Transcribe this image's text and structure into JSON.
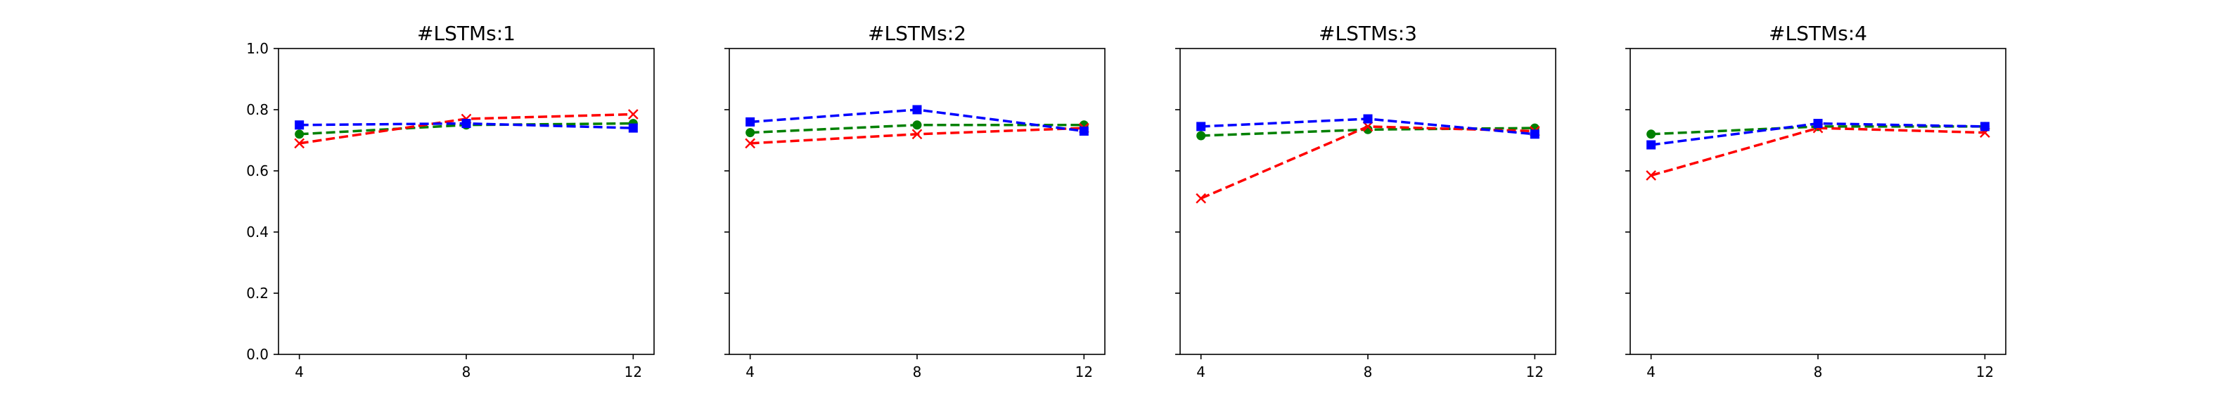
{
  "chart_data": [
    {
      "type": "line",
      "title": "#LSTMs:1",
      "xlabel": "",
      "ylabel": "",
      "x": [
        4,
        8,
        12
      ],
      "xticks": [
        "4",
        "8",
        "12"
      ],
      "ylim": [
        0.0,
        1.0
      ],
      "yticks": [
        "0.0",
        "0.2",
        "0.4",
        "0.6",
        "0.8",
        "1.0"
      ],
      "show_yticklabels": true,
      "grid": false,
      "series": [
        {
          "values": [
            0.72,
            0.75,
            0.755
          ],
          "color": "#008000",
          "marker": "circle",
          "linestyle": "dashed"
        },
        {
          "values": [
            0.69,
            0.77,
            0.785
          ],
          "color": "#ff0000",
          "marker": "x",
          "linestyle": "dashed"
        },
        {
          "values": [
            0.75,
            0.755,
            0.74
          ],
          "color": "#0000ff",
          "marker": "square",
          "linestyle": "dashed"
        }
      ]
    },
    {
      "type": "line",
      "title": "#LSTMs:2",
      "xlabel": "",
      "ylabel": "",
      "x": [
        4,
        8,
        12
      ],
      "xticks": [
        "4",
        "8",
        "12"
      ],
      "ylim": [
        0.0,
        1.0
      ],
      "yticks": [
        "0.0",
        "0.2",
        "0.4",
        "0.6",
        "0.8",
        "1.0"
      ],
      "show_yticklabels": false,
      "grid": false,
      "series": [
        {
          "values": [
            0.725,
            0.75,
            0.75
          ],
          "color": "#008000",
          "marker": "circle",
          "linestyle": "dashed"
        },
        {
          "values": [
            0.69,
            0.72,
            0.74
          ],
          "color": "#ff0000",
          "marker": "x",
          "linestyle": "dashed"
        },
        {
          "values": [
            0.76,
            0.8,
            0.73
          ],
          "color": "#0000ff",
          "marker": "square",
          "linestyle": "dashed"
        }
      ]
    },
    {
      "type": "line",
      "title": "#LSTMs:3",
      "xlabel": "",
      "ylabel": "",
      "x": [
        4,
        8,
        12
      ],
      "xticks": [
        "4",
        "8",
        "12"
      ],
      "ylim": [
        0.0,
        1.0
      ],
      "yticks": [
        "0.0",
        "0.2",
        "0.4",
        "0.6",
        "0.8",
        "1.0"
      ],
      "show_yticklabels": false,
      "grid": false,
      "series": [
        {
          "values": [
            0.715,
            0.735,
            0.74
          ],
          "color": "#008000",
          "marker": "circle",
          "linestyle": "dashed"
        },
        {
          "values": [
            0.51,
            0.745,
            0.73
          ],
          "color": "#ff0000",
          "marker": "x",
          "linestyle": "dashed"
        },
        {
          "values": [
            0.745,
            0.77,
            0.72
          ],
          "color": "#0000ff",
          "marker": "square",
          "linestyle": "dashed"
        }
      ]
    },
    {
      "type": "line",
      "title": "#LSTMs:4",
      "xlabel": "",
      "ylabel": "",
      "x": [
        4,
        8,
        12
      ],
      "xticks": [
        "4",
        "8",
        "12"
      ],
      "ylim": [
        0.0,
        1.0
      ],
      "yticks": [
        "0.0",
        "0.2",
        "0.4",
        "0.6",
        "0.8",
        "1.0"
      ],
      "show_yticklabels": false,
      "grid": false,
      "series": [
        {
          "values": [
            0.72,
            0.745,
            0.745
          ],
          "color": "#008000",
          "marker": "circle",
          "linestyle": "dashed"
        },
        {
          "values": [
            0.585,
            0.74,
            0.725
          ],
          "color": "#ff0000",
          "marker": "x",
          "linestyle": "dashed"
        },
        {
          "values": [
            0.685,
            0.755,
            0.745
          ],
          "color": "#0000ff",
          "marker": "square",
          "linestyle": "dashed"
        }
      ]
    }
  ]
}
